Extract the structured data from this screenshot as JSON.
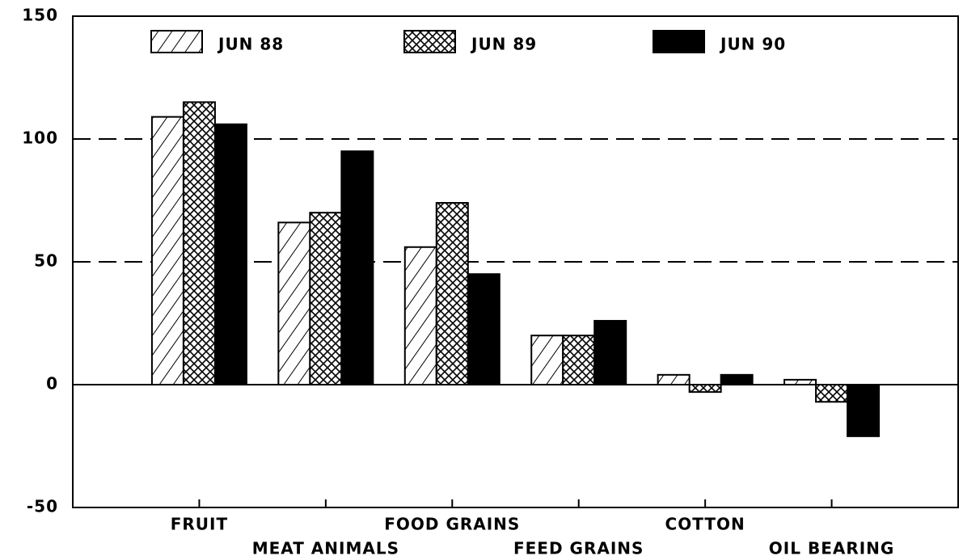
{
  "chart_data": {
    "type": "bar",
    "categories": [
      "FRUIT",
      "MEAT ANIMALS",
      "FOOD GRAINS",
      "FEED GRAINS",
      "COTTON",
      "OIL BEARING"
    ],
    "series": [
      {
        "name": "JUN 88",
        "color": "#000000",
        "pattern": "hatch",
        "values": [
          109,
          66,
          56,
          20,
          4,
          2
        ]
      },
      {
        "name": "JUN 89",
        "color": "#000000",
        "pattern": "crosshatch",
        "values": [
          115,
          70,
          74,
          20,
          -3,
          -7
        ]
      },
      {
        "name": "JUN 90",
        "color": "#000000",
        "pattern": "solid",
        "values": [
          106,
          95,
          45,
          26,
          4,
          -21
        ]
      }
    ],
    "ylim": [
      -50,
      150
    ],
    "yticks": [
      -50,
      0,
      50,
      100,
      150
    ],
    "grid": true,
    "legend": "top"
  }
}
